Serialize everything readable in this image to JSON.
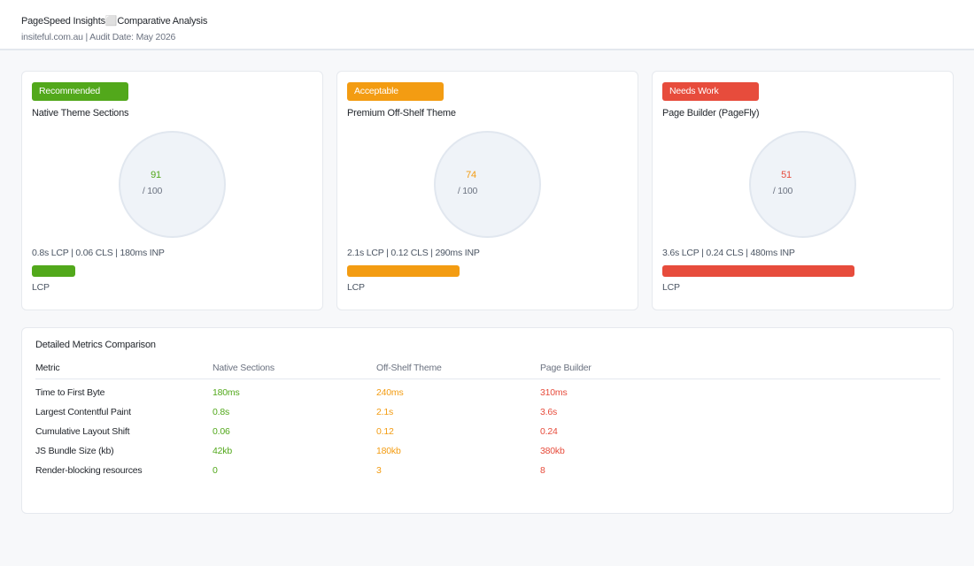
{
  "header": {
    "title": "PageSpeed Insights⬜Comparative Analysis",
    "subtitle": "insiteful.com.au | Audit Date: May 2026"
  },
  "colors": {
    "good": "#52a81b",
    "ok": "#f39c12",
    "bad": "#e74c3c"
  },
  "cards": [
    {
      "badge": "Recommended",
      "name": "Native Theme Sections",
      "score": "91",
      "score_max": "/ 100",
      "score_fraction": 0.91,
      "lcp_bar_fraction": 0.22,
      "metrics": "0.8s LCP  |  0.06 CLS  |  180ms INP",
      "bar_label": "LCP",
      "color": "#52a81b"
    },
    {
      "badge": "Acceptable",
      "name": "Premium Off-Shelf Theme",
      "score": "74",
      "score_max": "/ 100",
      "score_fraction": 0.74,
      "lcp_bar_fraction": 0.55,
      "metrics": "2.1s LCP  |  0.12 CLS  |  290ms INP",
      "bar_label": "LCP",
      "color": "#f39c12"
    },
    {
      "badge": "Needs Work",
      "name": "Page Builder (PageFly)",
      "score": "51",
      "score_max": "/ 100",
      "score_fraction": 0.51,
      "lcp_bar_fraction": 0.94,
      "metrics": "3.6s LCP  |  0.24 CLS  |  480ms INP",
      "bar_label": "LCP",
      "color": "#e74c3c"
    }
  ],
  "table": {
    "title": "Detailed Metrics Comparison",
    "headers": [
      "Metric",
      "Native Sections",
      "Off-Shelf Theme",
      "Page Builder"
    ],
    "rows": [
      [
        "Time to First Byte",
        "180ms",
        "240ms",
        "310ms"
      ],
      [
        "Largest Contentful Paint",
        "0.8s",
        "2.1s",
        "3.6s"
      ],
      [
        "Cumulative Layout Shift",
        "0.06",
        "0.12",
        "0.24"
      ],
      [
        "JS Bundle Size (kb)",
        "42kb",
        "180kb",
        "380kb"
      ],
      [
        "Render-blocking resources",
        "0",
        "3",
        "8"
      ]
    ]
  }
}
